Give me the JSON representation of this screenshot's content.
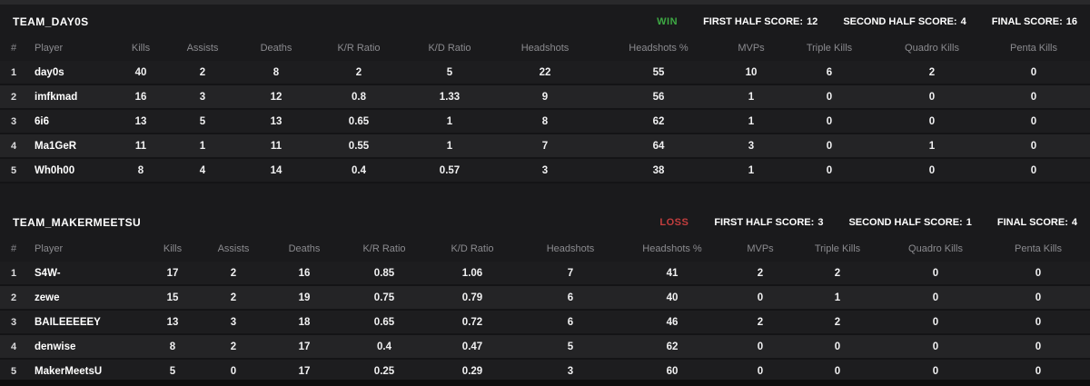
{
  "colors": {
    "win": "#3ea944",
    "loss": "#c43e3e"
  },
  "score_labels": {
    "first": "FIRST HALF SCORE:",
    "second": "SECOND HALF SCORE:",
    "final": "FINAL SCORE:"
  },
  "columns": [
    {
      "key": "rank",
      "label": "#"
    },
    {
      "key": "player",
      "label": "Player"
    },
    {
      "key": "kills",
      "label": "Kills"
    },
    {
      "key": "assists",
      "label": "Assists"
    },
    {
      "key": "deaths",
      "label": "Deaths"
    },
    {
      "key": "kr",
      "label": "K/R Ratio"
    },
    {
      "key": "kd",
      "label": "K/D Ratio"
    },
    {
      "key": "hs",
      "label": "Headshots"
    },
    {
      "key": "hsp",
      "label": "Headshots %"
    },
    {
      "key": "mvps",
      "label": "MVPs"
    },
    {
      "key": "triple",
      "label": "Triple Kills"
    },
    {
      "key": "quadro",
      "label": "Quadro Kills"
    },
    {
      "key": "penta",
      "label": "Penta Kills"
    }
  ],
  "teams": [
    {
      "name": "TEAM_DAY0S",
      "result": "WIN",
      "first_half_score": "12",
      "second_half_score": "4",
      "final_score": "16",
      "players": [
        {
          "rank": "1",
          "player": "day0s",
          "kills": "40",
          "assists": "2",
          "deaths": "8",
          "kr": "2",
          "kd": "5",
          "hs": "22",
          "hsp": "55",
          "mvps": "10",
          "triple": "6",
          "quadro": "2",
          "penta": "0"
        },
        {
          "rank": "2",
          "player": "imfkmad",
          "kills": "16",
          "assists": "3",
          "deaths": "12",
          "kr": "0.8",
          "kd": "1.33",
          "hs": "9",
          "hsp": "56",
          "mvps": "1",
          "triple": "0",
          "quadro": "0",
          "penta": "0"
        },
        {
          "rank": "3",
          "player": "6i6",
          "kills": "13",
          "assists": "5",
          "deaths": "13",
          "kr": "0.65",
          "kd": "1",
          "hs": "8",
          "hsp": "62",
          "mvps": "1",
          "triple": "0",
          "quadro": "0",
          "penta": "0"
        },
        {
          "rank": "4",
          "player": "Ma1GeR",
          "kills": "11",
          "assists": "1",
          "deaths": "11",
          "kr": "0.55",
          "kd": "1",
          "hs": "7",
          "hsp": "64",
          "mvps": "3",
          "triple": "0",
          "quadro": "1",
          "penta": "0"
        },
        {
          "rank": "5",
          "player": "Wh0h00",
          "kills": "8",
          "assists": "4",
          "deaths": "14",
          "kr": "0.4",
          "kd": "0.57",
          "hs": "3",
          "hsp": "38",
          "mvps": "1",
          "triple": "0",
          "quadro": "0",
          "penta": "0"
        }
      ]
    },
    {
      "name": "TEAM_MAKERMEETSU",
      "result": "LOSS",
      "first_half_score": "3",
      "second_half_score": "1",
      "final_score": "4",
      "players": [
        {
          "rank": "1",
          "player": "S4W-",
          "kills": "17",
          "assists": "2",
          "deaths": "16",
          "kr": "0.85",
          "kd": "1.06",
          "hs": "7",
          "hsp": "41",
          "mvps": "2",
          "triple": "2",
          "quadro": "0",
          "penta": "0"
        },
        {
          "rank": "2",
          "player": "zewe",
          "kills": "15",
          "assists": "2",
          "deaths": "19",
          "kr": "0.75",
          "kd": "0.79",
          "hs": "6",
          "hsp": "40",
          "mvps": "0",
          "triple": "1",
          "quadro": "0",
          "penta": "0"
        },
        {
          "rank": "3",
          "player": "BAILEEEEEY",
          "kills": "13",
          "assists": "3",
          "deaths": "18",
          "kr": "0.65",
          "kd": "0.72",
          "hs": "6",
          "hsp": "46",
          "mvps": "2",
          "triple": "2",
          "quadro": "0",
          "penta": "0"
        },
        {
          "rank": "4",
          "player": "denwise",
          "kills": "8",
          "assists": "2",
          "deaths": "17",
          "kr": "0.4",
          "kd": "0.47",
          "hs": "5",
          "hsp": "62",
          "mvps": "0",
          "triple": "0",
          "quadro": "0",
          "penta": "0"
        },
        {
          "rank": "5",
          "player": "MakerMeetsU",
          "kills": "5",
          "assists": "0",
          "deaths": "17",
          "kr": "0.25",
          "kd": "0.29",
          "hs": "3",
          "hsp": "60",
          "mvps": "0",
          "triple": "0",
          "quadro": "0",
          "penta": "0"
        }
      ]
    }
  ]
}
